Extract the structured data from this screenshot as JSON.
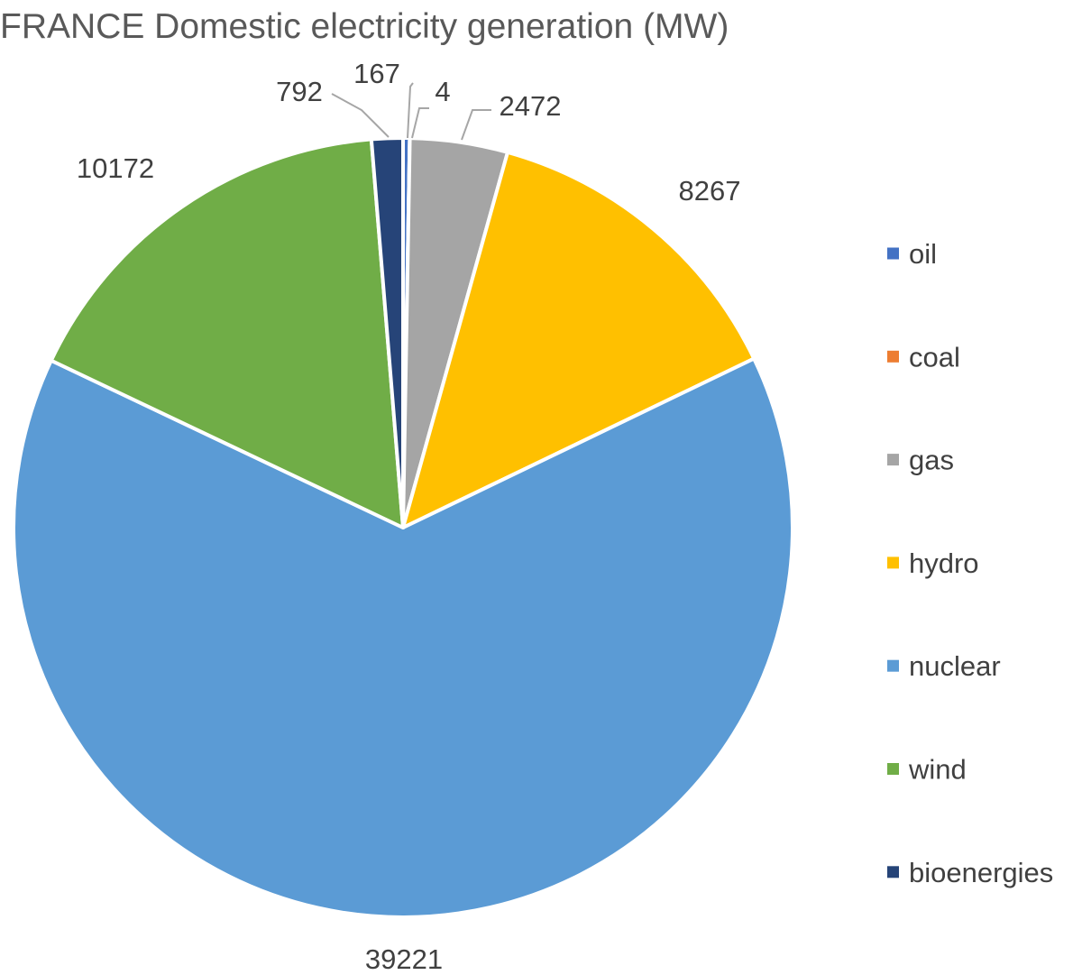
{
  "chart_data": {
    "type": "pie",
    "title": "FRANCE Domestic electricity generation (MW)",
    "legend_position": "right",
    "series": [
      {
        "name": "oil",
        "value": 167,
        "label": "167",
        "color": "#4472C4"
      },
      {
        "name": "coal",
        "value": 4,
        "label": "4",
        "color": "#ED7D31"
      },
      {
        "name": "gas",
        "value": 2472,
        "label": "2472",
        "color": "#A5A5A5"
      },
      {
        "name": "hydro",
        "value": 8267,
        "label": "8267",
        "color": "#FFC000"
      },
      {
        "name": "nuclear",
        "value": 39221,
        "label": "39221",
        "color": "#5B9BD5"
      },
      {
        "name": "wind",
        "value": 10172,
        "label": "10172",
        "color": "#70AD47"
      },
      {
        "name": "bioenergies",
        "value": 792,
        "label": "792",
        "color": "#264478"
      }
    ]
  }
}
